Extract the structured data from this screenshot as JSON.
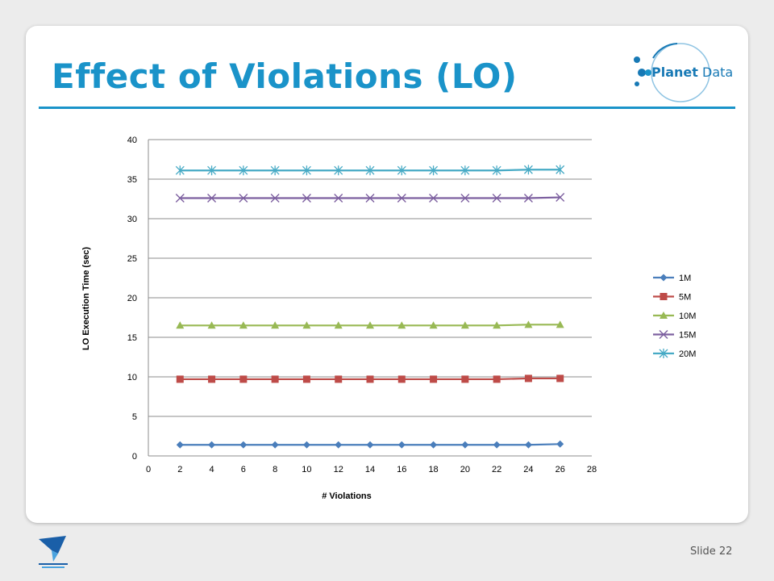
{
  "slide": {
    "title": "Effect of Violations (LO)",
    "slide_label": "Slide",
    "slide_number": "22",
    "accent_color": "#1a93c9"
  },
  "logo": {
    "name_part1": "Planet",
    "name_part2": "Data"
  },
  "chart_data": {
    "type": "line",
    "title": "",
    "xlabel": "# Violations",
    "ylabel": "LO Execution Time (sec)",
    "xlim": [
      0,
      28
    ],
    "ylim": [
      0,
      40
    ],
    "x_ticks": [
      0,
      2,
      4,
      6,
      8,
      10,
      12,
      14,
      16,
      18,
      20,
      22,
      24,
      26,
      28
    ],
    "y_ticks": [
      0,
      5,
      10,
      15,
      20,
      25,
      30,
      35,
      40
    ],
    "grid": "horizontal",
    "legend_position": "right",
    "x": [
      2,
      4,
      6,
      8,
      10,
      12,
      14,
      16,
      18,
      20,
      22,
      24,
      26
    ],
    "series": [
      {
        "name": "1M",
        "color": "#4a7ebb",
        "marker": "diamond",
        "values": [
          1.4,
          1.4,
          1.4,
          1.4,
          1.4,
          1.4,
          1.4,
          1.4,
          1.4,
          1.4,
          1.4,
          1.4,
          1.5
        ]
      },
      {
        "name": "5M",
        "color": "#be4b48",
        "marker": "square",
        "values": [
          9.7,
          9.7,
          9.7,
          9.7,
          9.7,
          9.7,
          9.7,
          9.7,
          9.7,
          9.7,
          9.7,
          9.8,
          9.8
        ]
      },
      {
        "name": "10M",
        "color": "#98b954",
        "marker": "triangle",
        "values": [
          16.5,
          16.5,
          16.5,
          16.5,
          16.5,
          16.5,
          16.5,
          16.5,
          16.5,
          16.5,
          16.5,
          16.6,
          16.6
        ]
      },
      {
        "name": "15M",
        "color": "#7d60a0",
        "marker": "x",
        "values": [
          32.6,
          32.6,
          32.6,
          32.6,
          32.6,
          32.6,
          32.6,
          32.6,
          32.6,
          32.6,
          32.6,
          32.6,
          32.7
        ]
      },
      {
        "name": "20M",
        "color": "#46aac5",
        "marker": "star",
        "values": [
          36.1,
          36.1,
          36.1,
          36.1,
          36.1,
          36.1,
          36.1,
          36.1,
          36.1,
          36.1,
          36.1,
          36.2,
          36.2
        ]
      }
    ]
  }
}
